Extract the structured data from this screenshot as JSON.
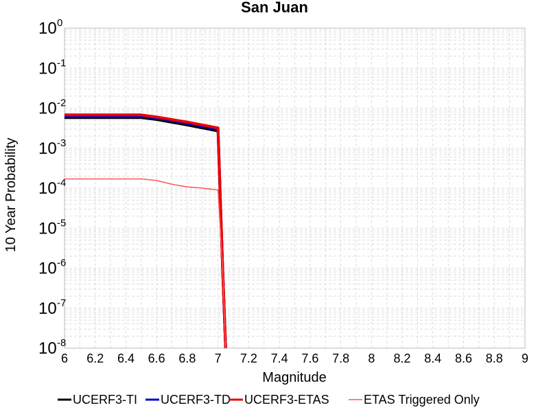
{
  "chart_data": {
    "type": "line",
    "title": "San Juan",
    "xlabel": "Magnitude",
    "ylabel": "10 Year Probability",
    "xlim": [
      6,
      9
    ],
    "ylim": [
      1e-08,
      1
    ],
    "yscale": "log",
    "grid": true,
    "legend_position": "bottom",
    "x_ticks": [
      "6",
      "6.2",
      "6.4",
      "6.6",
      "6.8",
      "7",
      "7.2",
      "7.4",
      "7.6",
      "7.8",
      "8",
      "8.2",
      "8.4",
      "8.6",
      "8.8",
      "9"
    ],
    "y_ticks": [
      {
        "base": "10",
        "exp": "0"
      },
      {
        "base": "10",
        "exp": "-1"
      },
      {
        "base": "10",
        "exp": "-2"
      },
      {
        "base": "10",
        "exp": "-3"
      },
      {
        "base": "10",
        "exp": "-4"
      },
      {
        "base": "10",
        "exp": "-5"
      },
      {
        "base": "10",
        "exp": "-6"
      },
      {
        "base": "10",
        "exp": "-7"
      },
      {
        "base": "10",
        "exp": "-8"
      }
    ],
    "series": [
      {
        "name": "UCERF3-TI",
        "color": "#000000",
        "x": [
          6.0,
          6.5,
          6.6,
          6.8,
          7.0,
          7.03,
          7.05
        ],
        "y": [
          0.0058,
          0.0058,
          0.0052,
          0.0038,
          0.0027,
          1e-06,
          1e-08
        ]
      },
      {
        "name": "UCERF3-TD",
        "color": "#0000cc",
        "x": [
          6.0,
          6.5,
          6.6,
          6.8,
          7.0,
          7.03,
          7.05
        ],
        "y": [
          0.0063,
          0.0063,
          0.0057,
          0.0042,
          0.003,
          1e-06,
          1e-08
        ]
      },
      {
        "name": "UCERF3-ETAS",
        "color": "#ee0000",
        "x": [
          6.0,
          6.5,
          6.6,
          6.8,
          7.0,
          7.03,
          7.05
        ],
        "y": [
          0.0068,
          0.0068,
          0.006,
          0.0045,
          0.0032,
          1e-06,
          1e-08
        ]
      },
      {
        "name": "ETAS Triggered Only",
        "color": "#ff5555",
        "x": [
          6.0,
          6.5,
          6.6,
          6.7,
          6.8,
          6.9,
          7.0,
          7.03,
          7.05
        ],
        "y": [
          0.00017,
          0.00017,
          0.000155,
          0.000125,
          0.000108,
          0.0001,
          9e-05,
          1e-06,
          1e-08
        ]
      }
    ]
  }
}
